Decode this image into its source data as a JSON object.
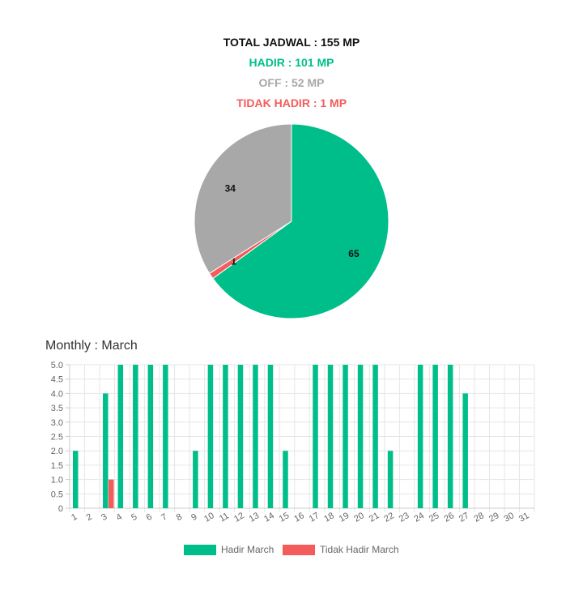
{
  "summary": {
    "total": "TOTAL JADWAL : 155 MP",
    "hadir": "HADIR : 101 MP",
    "off": "OFF : 52 MP",
    "tidak_hadir": "TIDAK HADIR : 1 MP"
  },
  "colors": {
    "hadir": "#00be8a",
    "off": "#a8a8a8",
    "tidak_hadir": "#f45b5b",
    "text": "#111111"
  },
  "monthly_title": "Monthly : March",
  "chart_data": [
    {
      "type": "pie",
      "slices": [
        {
          "label": "65",
          "value": 65,
          "color": "#00be8a"
        },
        {
          "label": "1",
          "value": 1,
          "color": "#f45b5b"
        },
        {
          "label": "34",
          "value": 34,
          "color": "#a8a8a8"
        }
      ]
    },
    {
      "type": "bar",
      "categories": [
        "1",
        "2",
        "3",
        "4",
        "5",
        "6",
        "7",
        "8",
        "9",
        "10",
        "11",
        "12",
        "13",
        "14",
        "15",
        "16",
        "17",
        "18",
        "19",
        "20",
        "21",
        "22",
        "23",
        "24",
        "25",
        "26",
        "27",
        "28",
        "29",
        "30",
        "31"
      ],
      "series": [
        {
          "name": "Hadir March",
          "color": "#00be8a",
          "values": [
            2,
            0,
            4,
            5,
            5,
            5,
            5,
            0,
            2,
            5,
            5,
            5,
            5,
            5,
            2,
            0,
            5,
            5,
            5,
            5,
            5,
            2,
            0,
            5,
            5,
            5,
            4,
            0,
            0,
            0,
            0
          ]
        },
        {
          "name": "Tidak Hadir March",
          "color": "#f45b5b",
          "values": [
            0,
            0,
            1,
            0,
            0,
            0,
            0,
            0,
            0,
            0,
            0,
            0,
            0,
            0,
            0,
            0,
            0,
            0,
            0,
            0,
            0,
            0,
            0,
            0,
            0,
            0,
            0,
            0,
            0,
            0,
            0
          ]
        }
      ],
      "ylim": [
        0,
        5
      ],
      "yticks": [
        "0",
        "0.5",
        "1.0",
        "1.5",
        "2.0",
        "2.5",
        "3.0",
        "3.5",
        "4.0",
        "4.5",
        "5.0"
      ],
      "grid": true,
      "legend": "bottom"
    }
  ]
}
